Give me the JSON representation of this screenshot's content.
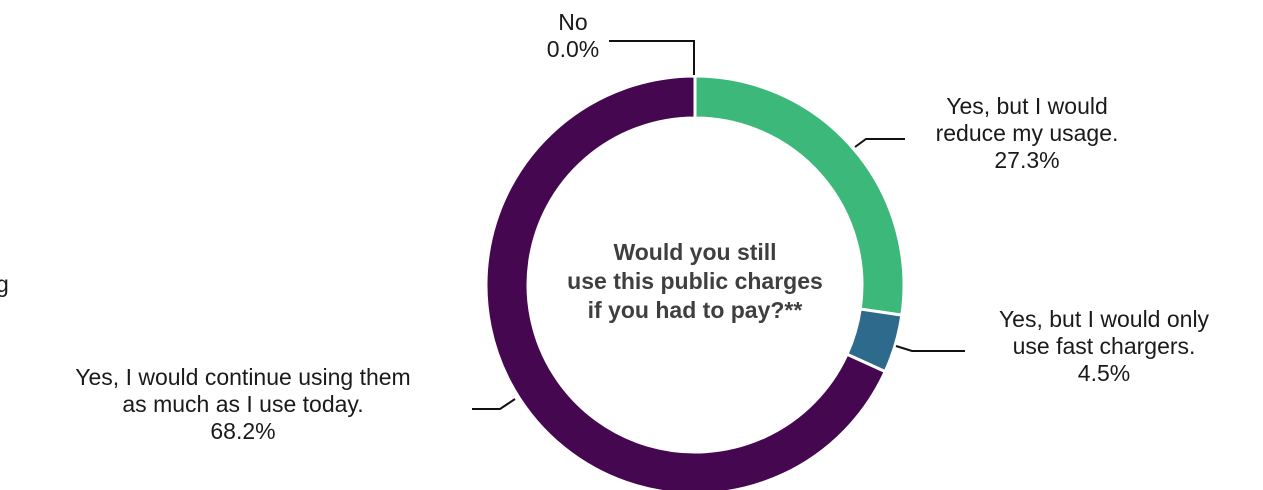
{
  "chart_data": {
    "type": "donut",
    "title": "",
    "center_label": [
      "Would you still",
      "use this public charges",
      "if you had to pay?**"
    ],
    "slices": [
      {
        "label_lines": [
          "No"
        ],
        "value_text": "0.0%",
        "value": 0.0,
        "color": "#f0f0f0"
      },
      {
        "label_lines": [
          "Yes, but I would",
          "reduce my usage."
        ],
        "value_text": "27.3%",
        "value": 27.3,
        "color": "#3bb87a"
      },
      {
        "label_lines": [
          "Yes, but I would only",
          "use fast chargers."
        ],
        "value_text": "4.5%",
        "value": 4.5,
        "color": "#2e6a8c"
      },
      {
        "label_lines": [
          "Yes, I would continue using them",
          "as much as I use today."
        ],
        "value_text": "68.2%",
        "value": 68.2,
        "color": "#450750"
      }
    ],
    "edge_fragment": "g"
  }
}
